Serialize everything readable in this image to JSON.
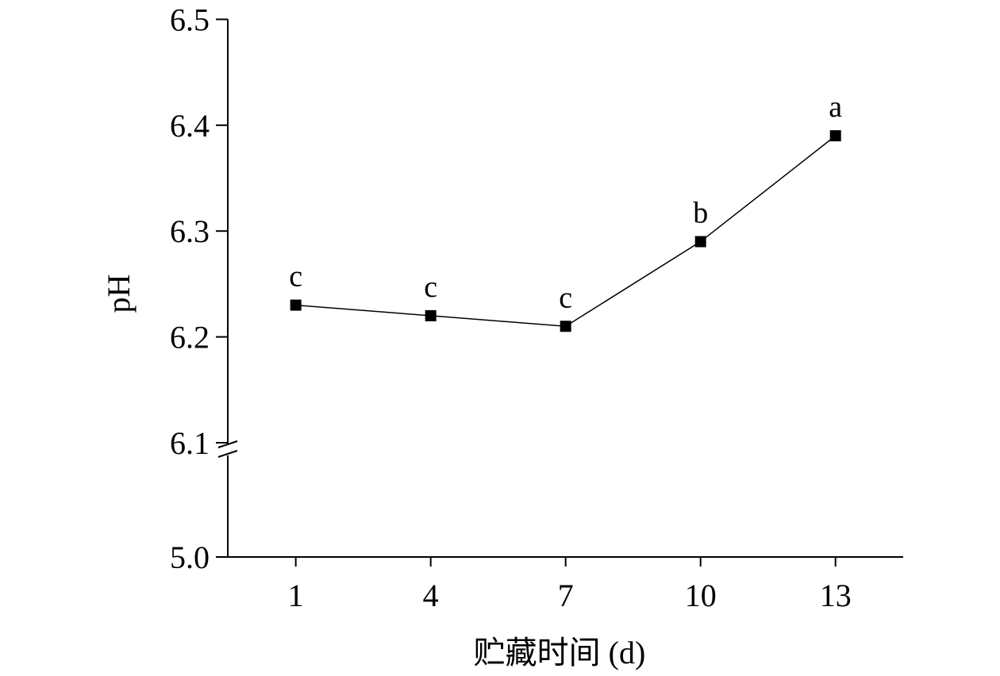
{
  "chart_data": {
    "type": "line",
    "title": "",
    "xlabel": "贮藏时间 (d)",
    "ylabel": "pH",
    "x": [
      1,
      4,
      7,
      10,
      13
    ],
    "x_tick_labels": [
      "1",
      "4",
      "7",
      "10",
      "13"
    ],
    "series": [
      {
        "values": [
          6.23,
          6.22,
          6.21,
          6.29,
          6.39
        ],
        "point_labels": [
          "c",
          "c",
          "c",
          "b",
          "a"
        ],
        "marker": "square",
        "color": "#000000"
      }
    ],
    "y_ticks_upper": [
      6.1,
      6.2,
      6.3,
      6.4,
      6.5
    ],
    "y_tick_labels_upper": [
      "6.1",
      "6.2",
      "6.3",
      "6.4",
      "6.5"
    ],
    "y_tick_lower": 5.0,
    "y_tick_label_lower": "5.0",
    "ylim": [
      5.0,
      6.5
    ],
    "y_axis_break": [
      5.0,
      6.1
    ],
    "grid": false,
    "legend": "none"
  }
}
